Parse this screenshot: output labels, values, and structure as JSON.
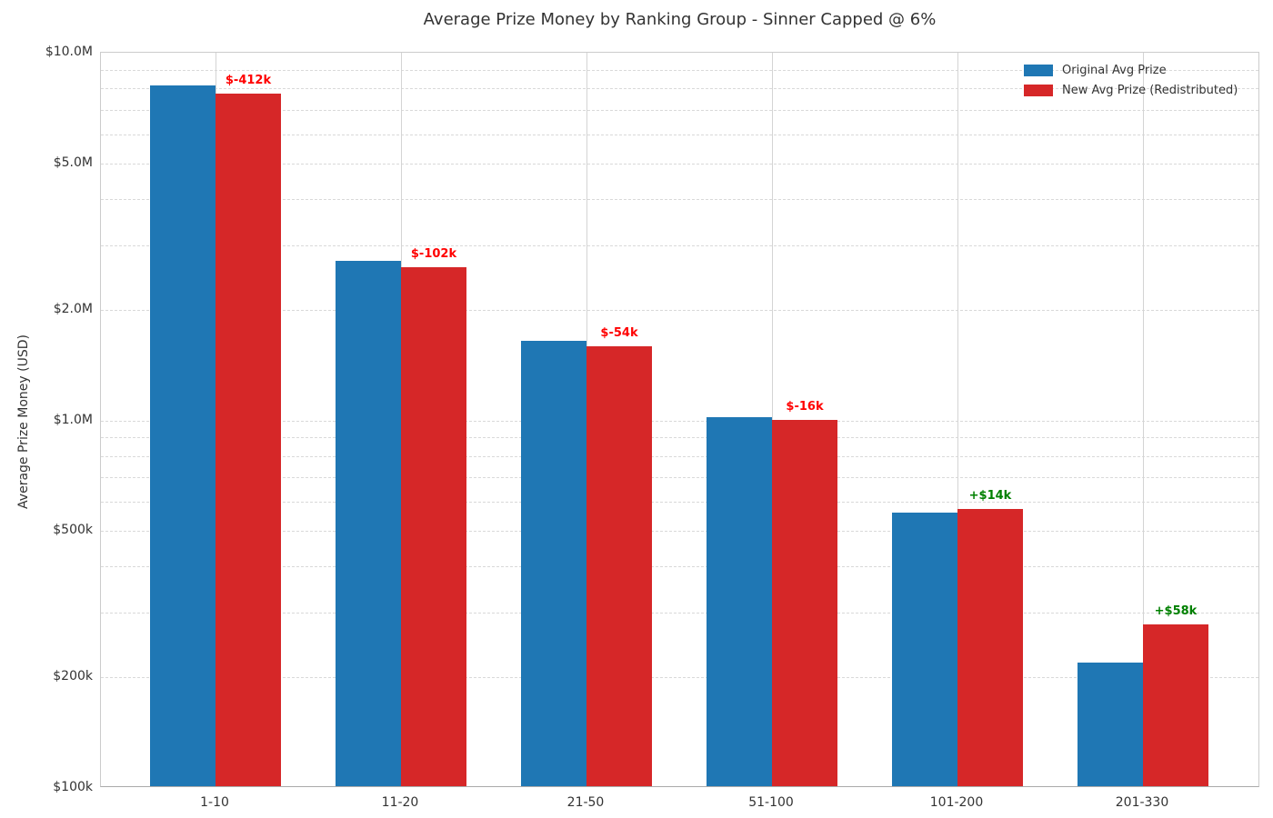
{
  "title": "Average Prize Money by Ranking Group - Sinner Capped @ 6%",
  "colors": {
    "original_series": "#1f77b4",
    "new_series": "#d62728",
    "annotation_negative": "#ff0000",
    "annotation_positive": "#008000",
    "background": "#ffffff"
  },
  "legend": {
    "items": [
      {
        "label": "Original Avg Prize",
        "color": "#1f77b4"
      },
      {
        "label": "New Avg Prize (Redistributed)",
        "color": "#d62728"
      }
    ],
    "position": "upper-right",
    "frame": false
  },
  "chart_data": {
    "type": "bar",
    "title": "Average Prize Money by Ranking Group - Sinner Capped @ 6%",
    "xlabel": "",
    "ylabel": "Average Prize Money (USD)",
    "yscale": "log",
    "ylim": [
      100000,
      10000000
    ],
    "grid": "horizontal dashed (major+minor log ticks), vertical solid at category centers",
    "legend_position": "upper right",
    "categories": [
      "1-10",
      "11-20",
      "21-50",
      "51-100",
      "101-200",
      "201-330"
    ],
    "series": [
      {
        "name": "Original Avg Prize",
        "color": "#1f77b4",
        "values": [
          8050000,
          2680000,
          1630000,
          1010000,
          555000,
          217000
        ]
      },
      {
        "name": "New Avg Prize (Redistributed)",
        "color": "#d62728",
        "values": [
          7638000,
          2578000,
          1576000,
          994000,
          569000,
          275000
        ]
      }
    ],
    "annotations": [
      {
        "category": "1-10",
        "text": "$-412k",
        "color": "#ff0000"
      },
      {
        "category": "11-20",
        "text": "$-102k",
        "color": "#ff0000"
      },
      {
        "category": "21-50",
        "text": "$-54k",
        "color": "#ff0000"
      },
      {
        "category": "51-100",
        "text": "$-16k",
        "color": "#ff0000"
      },
      {
        "category": "101-200",
        "text": "+$14k",
        "color": "#008000"
      },
      {
        "category": "201-330",
        "text": "+$58k",
        "color": "#008000"
      }
    ],
    "yticks": [
      {
        "value": 10000000,
        "label": "$10.0M"
      },
      {
        "value": 5000000,
        "label": "$5.0M"
      },
      {
        "value": 2000000,
        "label": "$2.0M"
      },
      {
        "value": 1000000,
        "label": "$1.0M"
      },
      {
        "value": 500000,
        "label": "$500k"
      },
      {
        "value": 200000,
        "label": "$200k"
      },
      {
        "value": 100000,
        "label": "$100k"
      }
    ],
    "minor_gridline_values": [
      200000,
      300000,
      400000,
      500000,
      600000,
      700000,
      800000,
      900000,
      1000000,
      2000000,
      3000000,
      4000000,
      5000000,
      6000000,
      7000000,
      8000000,
      9000000
    ]
  }
}
